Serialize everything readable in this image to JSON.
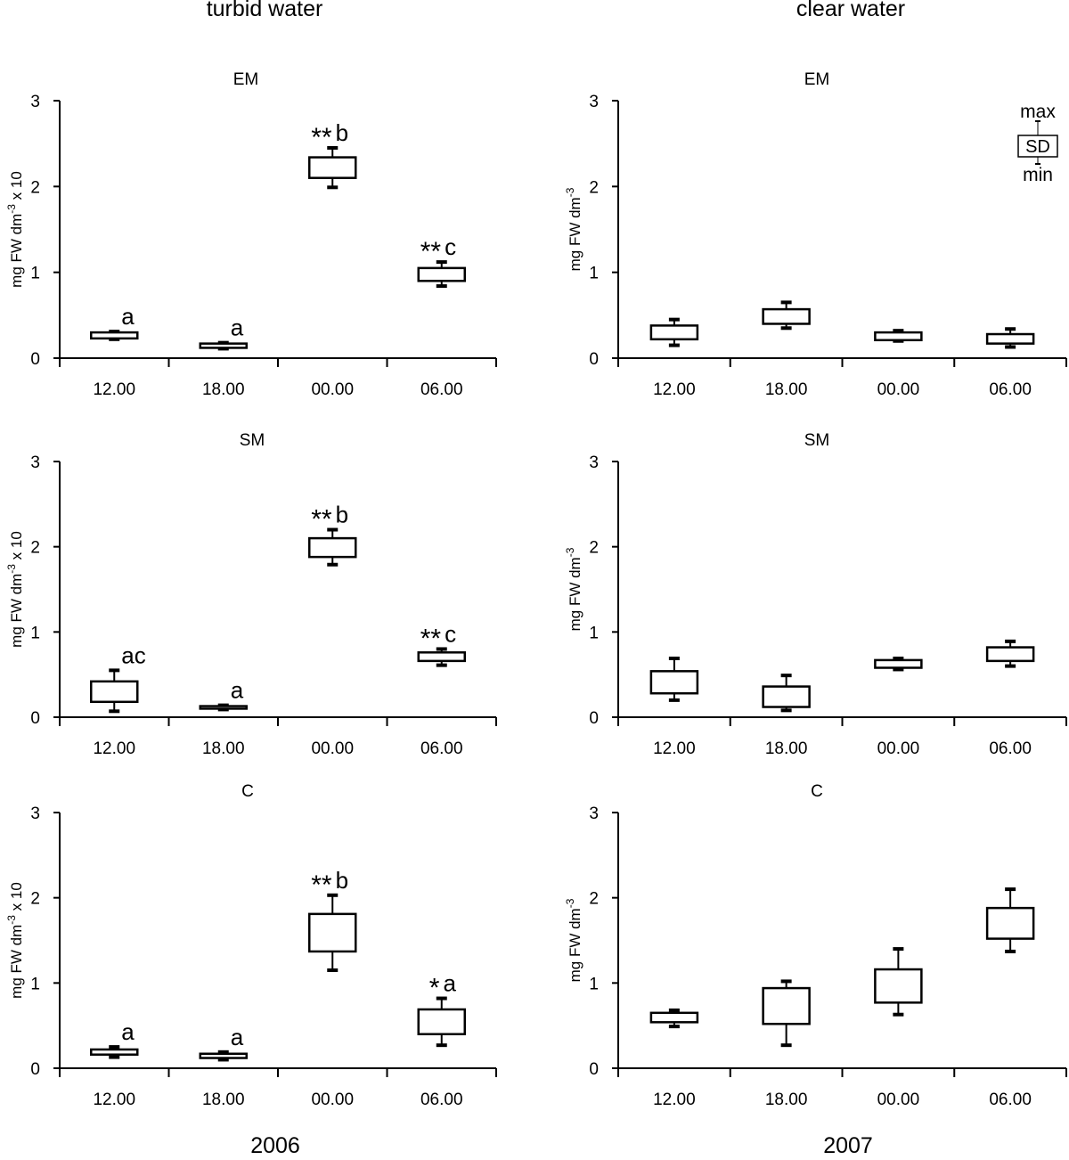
{
  "figure": {
    "column_titles": [
      "turbid water",
      "clear water"
    ],
    "years": [
      "2006",
      "2007"
    ]
  },
  "legend_key": {
    "max_label": "max",
    "sd_label": "SD",
    "min_label": "min"
  },
  "chart_data": [
    {
      "type": "boxplot",
      "title": "EM",
      "ylabel": "mg FW dm-3 x 10",
      "ylabel_parts": {
        "base": "mg FW dm",
        "sup": "-3",
        "suffix": " x 10"
      },
      "categories": [
        "12.00",
        "18.00",
        "00.00",
        "06.00"
      ],
      "ylim": [
        0,
        3
      ],
      "yticks": [
        0,
        1,
        2,
        3
      ],
      "boxes": [
        {
          "min": 0.22,
          "q1": 0.23,
          "q3": 0.3,
          "max": 0.31,
          "label": "a"
        },
        {
          "min": 0.11,
          "q1": 0.12,
          "q3": 0.17,
          "max": 0.18,
          "label": "a"
        },
        {
          "min": 1.99,
          "q1": 2.1,
          "q3": 2.34,
          "max": 2.45,
          "label": "**b"
        },
        {
          "min": 0.84,
          "q1": 0.9,
          "q3": 1.05,
          "max": 1.12,
          "label": "**c"
        }
      ]
    },
    {
      "type": "boxplot",
      "title": "EM",
      "ylabel": "mg FW dm-3",
      "ylabel_parts": {
        "base": "mg FW dm",
        "sup": "-3",
        "suffix": ""
      },
      "categories": [
        "12.00",
        "18.00",
        "00.00",
        "06.00"
      ],
      "ylim": [
        0,
        3
      ],
      "yticks": [
        0,
        1,
        2,
        3
      ],
      "boxes": [
        {
          "min": 0.15,
          "q1": 0.22,
          "q3": 0.38,
          "max": 0.45,
          "label": ""
        },
        {
          "min": 0.35,
          "q1": 0.4,
          "q3": 0.57,
          "max": 0.65,
          "label": ""
        },
        {
          "min": 0.2,
          "q1": 0.21,
          "q3": 0.3,
          "max": 0.32,
          "label": ""
        },
        {
          "min": 0.13,
          "q1": 0.17,
          "q3": 0.28,
          "max": 0.34,
          "label": ""
        }
      ]
    },
    {
      "type": "boxplot",
      "title": "SM",
      "ylabel": "mg FW dm-3 x 10",
      "ylabel_parts": {
        "base": "mg FW dm",
        "sup": "-3",
        "suffix": " x 10"
      },
      "categories": [
        "12.00",
        "18.00",
        "00.00",
        "06.00"
      ],
      "ylim": [
        0,
        3
      ],
      "yticks": [
        0,
        1,
        2,
        3
      ],
      "boxes": [
        {
          "min": 0.07,
          "q1": 0.18,
          "q3": 0.42,
          "max": 0.55,
          "label": "ac"
        },
        {
          "min": 0.09,
          "q1": 0.1,
          "q3": 0.13,
          "max": 0.14,
          "label": "a"
        },
        {
          "min": 1.79,
          "q1": 1.88,
          "q3": 2.1,
          "max": 2.2,
          "label": "**b"
        },
        {
          "min": 0.61,
          "q1": 0.66,
          "q3": 0.76,
          "max": 0.8,
          "label": "**c"
        }
      ]
    },
    {
      "type": "boxplot",
      "title": "SM",
      "ylabel": "mg FW dm-3",
      "ylabel_parts": {
        "base": "mg FW dm",
        "sup": "-3",
        "suffix": ""
      },
      "categories": [
        "12.00",
        "18.00",
        "00.00",
        "06.00"
      ],
      "ylim": [
        0,
        3
      ],
      "yticks": [
        0,
        1,
        2,
        3
      ],
      "boxes": [
        {
          "min": 0.2,
          "q1": 0.28,
          "q3": 0.54,
          "max": 0.69,
          "label": ""
        },
        {
          "min": 0.08,
          "q1": 0.12,
          "q3": 0.36,
          "max": 0.49,
          "label": ""
        },
        {
          "min": 0.56,
          "q1": 0.58,
          "q3": 0.67,
          "max": 0.69,
          "label": ""
        },
        {
          "min": 0.6,
          "q1": 0.66,
          "q3": 0.82,
          "max": 0.89,
          "label": ""
        }
      ]
    },
    {
      "type": "boxplot",
      "title": "C",
      "ylabel": "mg FW dm-3 x 10",
      "ylabel_parts": {
        "base": "mg FW dm",
        "sup": "-3",
        "suffix": " x 10"
      },
      "categories": [
        "12.00",
        "18.00",
        "00.00",
        "06.00"
      ],
      "ylim": [
        0,
        3
      ],
      "yticks": [
        0,
        1,
        2,
        3
      ],
      "boxes": [
        {
          "min": 0.13,
          "q1": 0.16,
          "q3": 0.22,
          "max": 0.25,
          "label": "a"
        },
        {
          "min": 0.1,
          "q1": 0.12,
          "q3": 0.17,
          "max": 0.19,
          "label": "a"
        },
        {
          "min": 1.15,
          "q1": 1.37,
          "q3": 1.81,
          "max": 2.03,
          "label": "**b"
        },
        {
          "min": 0.27,
          "q1": 0.4,
          "q3": 0.69,
          "max": 0.82,
          "label": "*a"
        }
      ]
    },
    {
      "type": "boxplot",
      "title": "C",
      "ylabel": "mg FW dm-3",
      "ylabel_parts": {
        "base": "mg FW dm",
        "sup": "-3",
        "suffix": ""
      },
      "categories": [
        "12.00",
        "18.00",
        "00.00",
        "06.00"
      ],
      "ylim": [
        0,
        3
      ],
      "yticks": [
        0,
        1,
        2,
        3
      ],
      "boxes": [
        {
          "min": 0.49,
          "q1": 0.54,
          "q3": 0.65,
          "max": 0.68,
          "label": ""
        },
        {
          "min": 0.27,
          "q1": 0.52,
          "q3": 0.94,
          "max": 1.02,
          "label": ""
        },
        {
          "min": 0.63,
          "q1": 0.77,
          "q3": 1.16,
          "max": 1.4,
          "label": ""
        },
        {
          "min": 1.37,
          "q1": 1.52,
          "q3": 1.88,
          "max": 2.1,
          "label": ""
        }
      ]
    }
  ]
}
